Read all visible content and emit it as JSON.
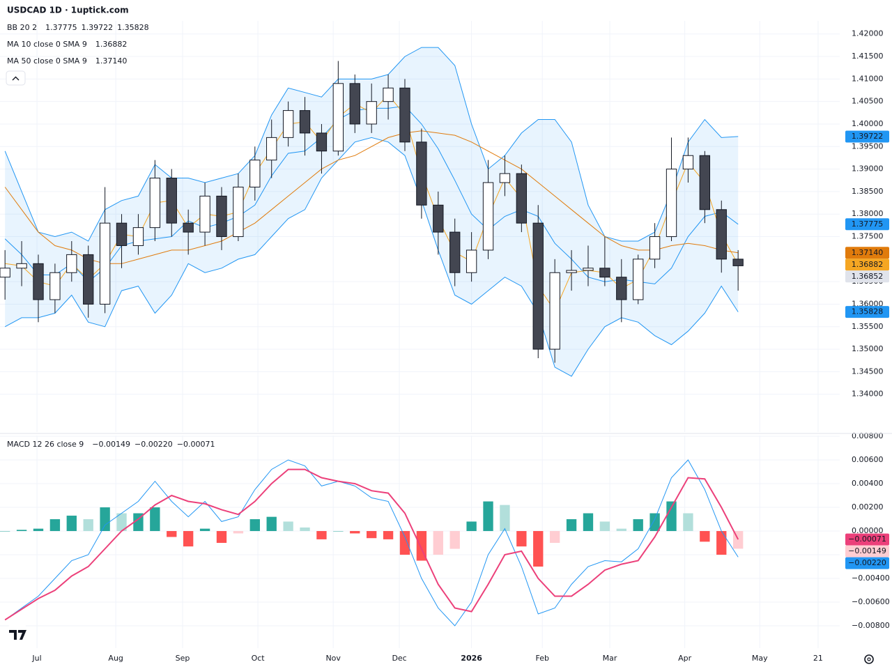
{
  "chart_data": [
    {
      "type": "candlestick",
      "title": "USDCAD 1D · 1uptick.com",
      "xlim": [
        -0.3,
        50.1
      ],
      "xticks": [
        {
          "value": 1.92,
          "label": "Jul"
        },
        {
          "value": 6.65,
          "label": "Aug"
        },
        {
          "value": 10.66,
          "label": "Sep"
        },
        {
          "value": 15.18,
          "label": "Oct"
        },
        {
          "value": 19.7,
          "label": "Nov"
        },
        {
          "value": 23.67,
          "label": "Dec"
        },
        {
          "value": 28.0,
          "label": "2026"
        },
        {
          "value": 32.25,
          "label": "Feb"
        },
        {
          "value": 36.3,
          "label": "Mar"
        },
        {
          "value": 40.8,
          "label": "Apr"
        },
        {
          "value": 45.3,
          "label": "May"
        },
        {
          "value": 48.8,
          "label": "21"
        }
      ],
      "ylim": [
        1.3316,
        1.4229
      ],
      "yticks": [
        {
          "value": 1.42,
          "label": "1.42000"
        },
        {
          "value": 1.415,
          "label": "1.41500"
        },
        {
          "value": 1.41,
          "label": "1.41000"
        },
        {
          "value": 1.405,
          "label": "1.40500"
        },
        {
          "value": 1.4,
          "label": "1.40000"
        },
        {
          "value": 1.395,
          "label": "1.39500"
        },
        {
          "value": 1.39,
          "label": "1.39000"
        },
        {
          "value": 1.385,
          "label": "1.38500"
        },
        {
          "value": 1.38,
          "label": "1.38000"
        },
        {
          "value": 1.375,
          "label": "1.37500"
        },
        {
          "value": 1.365,
          "label": "1.36500"
        },
        {
          "value": 1.36,
          "label": "1.36000"
        },
        {
          "value": 1.355,
          "label": "1.35500"
        },
        {
          "value": 1.35,
          "label": "1.35000"
        },
        {
          "value": 1.345,
          "label": "1.34500"
        },
        {
          "value": 1.34,
          "label": "1.34000"
        }
      ],
      "grid": true,
      "up_color": "#ffffff",
      "down_color": "#434651",
      "wick_color": "#131722",
      "last_color": "#e0e3eb",
      "open": [
        1.366,
        1.368,
        1.369,
        1.361,
        1.367,
        1.371,
        1.36,
        1.378,
        1.373,
        1.377,
        1.388,
        1.378,
        1.376,
        1.384,
        1.375,
        1.386,
        1.392,
        1.397,
        1.403,
        1.398,
        1.394,
        1.409,
        1.4,
        1.405,
        1.408,
        1.396,
        1.382,
        1.376,
        1.367,
        1.372,
        1.387,
        1.389,
        1.378,
        1.35,
        1.367,
        1.3675,
        1.368,
        1.366,
        1.361,
        1.37,
        1.375,
        1.39,
        1.393,
        1.381,
        1.37
      ],
      "high": [
        1.372,
        1.374,
        1.371,
        1.369,
        1.374,
        1.373,
        1.386,
        1.38,
        1.38,
        1.392,
        1.39,
        1.381,
        1.387,
        1.386,
        1.389,
        1.395,
        1.401,
        1.405,
        1.406,
        1.4,
        1.414,
        1.411,
        1.409,
        1.411,
        1.41,
        1.399,
        1.385,
        1.379,
        1.376,
        1.392,
        1.393,
        1.391,
        1.382,
        1.37,
        1.372,
        1.373,
        1.375,
        1.37,
        1.371,
        1.378,
        1.397,
        1.397,
        1.394,
        1.383,
        1.372
      ],
      "low": [
        1.361,
        1.364,
        1.356,
        1.358,
        1.365,
        1.357,
        1.358,
        1.368,
        1.371,
        1.374,
        1.375,
        1.371,
        1.373,
        1.372,
        1.374,
        1.383,
        1.388,
        1.395,
        1.393,
        1.389,
        1.393,
        1.398,
        1.398,
        1.401,
        1.394,
        1.379,
        1.371,
        1.364,
        1.365,
        1.37,
        1.384,
        1.376,
        1.348,
        1.347,
        1.363,
        1.364,
        1.364,
        1.356,
        1.36,
        1.368,
        1.374,
        1.387,
        1.378,
        1.367,
        1.363
      ],
      "close": [
        1.368,
        1.369,
        1.361,
        1.367,
        1.371,
        1.36,
        1.378,
        1.373,
        1.377,
        1.388,
        1.378,
        1.376,
        1.384,
        1.375,
        1.386,
        1.392,
        1.397,
        1.403,
        1.398,
        1.394,
        1.409,
        1.4,
        1.405,
        1.408,
        1.396,
        1.382,
        1.376,
        1.367,
        1.372,
        1.387,
        1.389,
        1.378,
        1.35,
        1.367,
        1.3675,
        1.368,
        1.366,
        1.361,
        1.37,
        1.375,
        1.39,
        1.393,
        1.381,
        1.37,
        1.36852
      ],
      "indicators": [
        {
          "label": "BB 20 2",
          "value_labels": [
            "1.37775",
            "1.39722",
            "1.35828"
          ],
          "color": "#2196f3",
          "fill": "rgba(33,150,243,0.1)",
          "lines": [
            {
              "values": [
                1.3745,
                1.371,
                1.3665,
                1.3665,
                1.369,
                1.365,
                1.368,
                1.373,
                1.374,
                1.3745,
                1.375,
                1.3785,
                1.377,
                1.378,
                1.3795,
                1.382,
                1.3885,
                1.3935,
                1.394,
                1.397,
                1.401,
                1.403,
                1.4035,
                1.4035,
                1.404,
                1.4,
                1.3945,
                1.3875,
                1.38,
                1.3765,
                1.3795,
                1.381,
                1.3795,
                1.3735,
                1.37,
                1.366,
                1.365,
                1.3655,
                1.365,
                1.3645,
                1.368,
                1.375,
                1.3795,
                1.3805,
                1.37775
              ]
            },
            {
              "values": [
                1.394,
                1.385,
                1.376,
                1.375,
                1.376,
                1.374,
                1.381,
                1.383,
                1.384,
                1.391,
                1.388,
                1.388,
                1.387,
                1.388,
                1.389,
                1.393,
                1.402,
                1.408,
                1.407,
                1.406,
                1.41,
                1.41,
                1.41,
                1.411,
                1.415,
                1.417,
                1.417,
                1.413,
                1.4,
                1.39,
                1.393,
                1.398,
                1.401,
                1.401,
                1.396,
                1.382,
                1.375,
                1.374,
                1.374,
                1.376,
                1.385,
                1.396,
                1.401,
                1.397,
                1.39722
              ]
            },
            {
              "values": [
                1.355,
                1.357,
                1.357,
                1.358,
                1.362,
                1.356,
                1.355,
                1.363,
                1.364,
                1.358,
                1.362,
                1.369,
                1.367,
                1.368,
                1.37,
                1.371,
                1.375,
                1.379,
                1.381,
                1.388,
                1.392,
                1.396,
                1.397,
                1.396,
                1.393,
                1.383,
                1.372,
                1.362,
                1.36,
                1.363,
                1.366,
                1.364,
                1.358,
                1.346,
                1.344,
                1.35,
                1.355,
                1.357,
                1.356,
                1.353,
                1.351,
                1.354,
                1.358,
                1.364,
                1.35828
              ]
            }
          ]
        },
        {
          "label": "MA 10 close 0 SMA 9",
          "value_labels": [
            "1.36882"
          ],
          "color": "#f5a623",
          "lines": [
            {
              "values": [
                1.369,
                1.3685,
                1.365,
                1.364,
                1.369,
                1.3655,
                1.369,
                1.3755,
                1.375,
                1.3825,
                1.383,
                1.377,
                1.38,
                1.3795,
                1.3805,
                1.389,
                1.3945,
                1.4,
                1.4005,
                1.396,
                1.4015,
                1.4045,
                1.4025,
                1.4065,
                1.402,
                1.389,
                1.379,
                1.3715,
                1.3695,
                1.3795,
                1.388,
                1.3835,
                1.364,
                1.3585,
                1.367,
                1.3675,
                1.367,
                1.3635,
                1.3655,
                1.3725,
                1.3825,
                1.3915,
                1.387,
                1.3755,
                1.36882
              ]
            }
          ]
        },
        {
          "label": "MA 50 close 0 SMA 9",
          "value_labels": [
            "1.37140"
          ],
          "color": "#e07b0c",
          "lines": [
            {
              "values": [
                1.386,
                1.381,
                1.376,
                1.373,
                1.372,
                1.37,
                1.369,
                1.369,
                1.37,
                1.371,
                1.372,
                1.372,
                1.373,
                1.374,
                1.376,
                1.378,
                1.381,
                1.384,
                1.387,
                1.39,
                1.392,
                1.393,
                1.395,
                1.397,
                1.398,
                1.3985,
                1.398,
                1.3975,
                1.396,
                1.394,
                1.392,
                1.39,
                1.387,
                1.384,
                1.381,
                1.378,
                1.375,
                1.373,
                1.372,
                1.372,
                1.373,
                1.3735,
                1.373,
                1.372,
                1.3714
              ]
            }
          ]
        }
      ]
    },
    {
      "type": "macd",
      "label": "MACD 12 26 close 9",
      "value_labels": [
        "−0.00149",
        "−0.00220",
        "−0.00071"
      ],
      "ylim": [
        -0.00988,
        0.00806
      ],
      "yticks": [
        {
          "value": 0.008,
          "label": "0.00800"
        },
        {
          "value": 0.006,
          "label": "0.00600"
        },
        {
          "value": 0.004,
          "label": "0.00400"
        },
        {
          "value": 0.002,
          "label": "0.00200"
        },
        {
          "value": 0,
          "label": "0.00000"
        },
        {
          "value": -0.002,
          "label": "−0.00200"
        },
        {
          "value": -0.004,
          "label": "−0.00400"
        },
        {
          "value": -0.006,
          "label": "−0.00600"
        },
        {
          "value": -0.008,
          "label": "−0.00800"
        }
      ],
      "histogram": {
        "colors": {
          "up_strong": "#26a69a",
          "up_weak": "#b2dfdb",
          "down_strong": "#ff5252",
          "down_weak": "#ffcdd2"
        },
        "values": [
          0,
          0.0001,
          0.0002,
          0.001,
          0.0013,
          0.001,
          0.002,
          0.0015,
          0.0015,
          0.002,
          -0.0005,
          -0.0013,
          0.0002,
          -0.001,
          -0.0002,
          0.001,
          0.0012,
          0.0008,
          0.0003,
          -0.0007,
          0,
          -0.0002,
          -0.0006,
          -0.0007,
          -0.002,
          -0.0025,
          -0.002,
          -0.0015,
          0.0008,
          0.0025,
          0.0022,
          -0.0013,
          -0.003,
          -0.001,
          0.001,
          0.0015,
          0.0008,
          0.0002,
          0.001,
          0.0015,
          0.0025,
          0.0015,
          -0.0009,
          -0.002,
          -0.00149
        ]
      },
      "macd": {
        "color": "#2196f3",
        "values": [
          -0.0075,
          -0.0065,
          -0.0055,
          -0.004,
          -0.0025,
          -0.002,
          0.0005,
          0.0015,
          0.0025,
          0.0042,
          0.0025,
          0.0012,
          0.0025,
          0.0008,
          0.0012,
          0.0035,
          0.0052,
          0.006,
          0.0055,
          0.0038,
          0.0042,
          0.0038,
          0.0028,
          0.0025,
          -0.0005,
          -0.004,
          -0.0065,
          -0.008,
          -0.006,
          -0.002,
          0.0002,
          -0.003,
          -0.007,
          -0.0065,
          -0.0045,
          -0.003,
          -0.0025,
          -0.0026,
          -0.0015,
          0.001,
          0.0045,
          0.006,
          0.0035,
          0,
          -0.0022
        ]
      },
      "signal": {
        "color": "#ec407a",
        "values": [
          -0.0075,
          -0.0066,
          -0.0057,
          -0.005,
          -0.0038,
          -0.003,
          -0.0015,
          0,
          0.001,
          0.0022,
          0.003,
          0.0025,
          0.0023,
          0.0018,
          0.0014,
          0.0025,
          0.004,
          0.0052,
          0.0052,
          0.0045,
          0.0042,
          0.004,
          0.0034,
          0.0032,
          0.0015,
          -0.0015,
          -0.0045,
          -0.0065,
          -0.0068,
          -0.0045,
          -0.002,
          -0.0017,
          -0.004,
          -0.0055,
          -0.0055,
          -0.0045,
          -0.0033,
          -0.0028,
          -0.0025,
          -0.0005,
          0.002,
          0.0045,
          0.0044,
          0.002,
          -0.00071
        ]
      }
    }
  ]
}
